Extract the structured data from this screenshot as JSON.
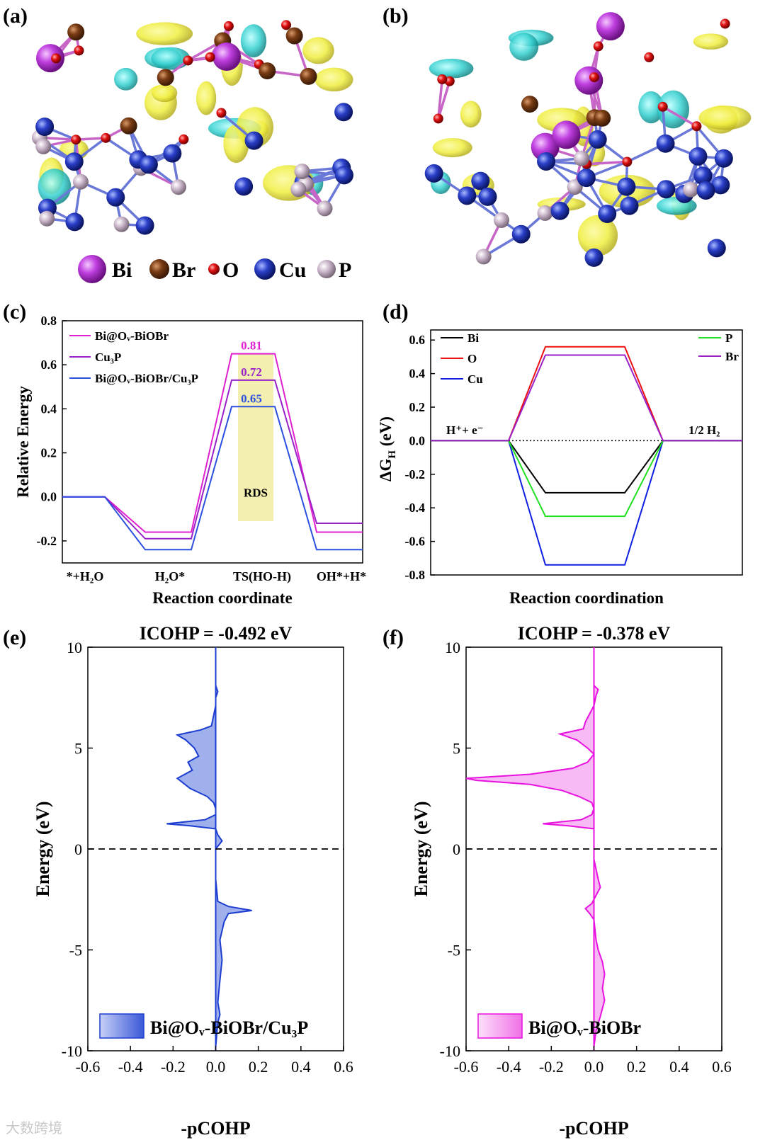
{
  "panel_labels": {
    "a": "(a)",
    "b": "(b)",
    "c": "(c)",
    "d": "(d)",
    "e": "(e)",
    "f": "(f)"
  },
  "colors": {
    "Bi": "#c040e0",
    "Br": "#7a3c14",
    "O": "#e01010",
    "Cu": "#2a3fc8",
    "P": "#c8b4c8",
    "accumulation": "#f0ee40",
    "depletion": "#35d0d0"
  },
  "atom_legend": [
    {
      "key": "Bi",
      "label": "Bi"
    },
    {
      "key": "Br",
      "label": "Br"
    },
    {
      "key": "O",
      "label": "O"
    },
    {
      "key": "Cu",
      "label": "Cu"
    },
    {
      "key": "P",
      "label": "P"
    }
  ],
  "watermark": "大数跨境",
  "chart_data": [
    {
      "id": "c",
      "type": "line",
      "ylabel": "Relative Energy",
      "xlabel": "Reaction coordinate",
      "ylim": [
        -0.3,
        0.8
      ],
      "yticks": [
        "-0.2",
        "0.0",
        "0.2",
        "0.4",
        "0.6",
        "0.8"
      ],
      "categories": [
        "*+H₂O",
        "H₂O*",
        "TS(HO-H)",
        "OH*+H*"
      ],
      "highlight": {
        "label": "RDS",
        "y_from": -0.11,
        "y_to": 0.65
      },
      "series": [
        {
          "name": "Bi@Oᵥ-BiOBr",
          "color": "#e020d0",
          "values": [
            0.0,
            -0.16,
            0.65,
            -0.16
          ],
          "barrier": "0.81"
        },
        {
          "name": "Cu₃P",
          "color": "#9a20c8",
          "values": [
            0.0,
            -0.19,
            0.53,
            -0.12
          ],
          "barrier": "0.72"
        },
        {
          "name": "Bi@Oᵥ-BiOBr/Cu₃P",
          "color": "#2b50e0",
          "values": [
            0.0,
            -0.24,
            0.41,
            -0.24
          ],
          "barrier": "0.65"
        }
      ]
    },
    {
      "id": "d",
      "type": "line",
      "ylabel": "ΔG_H (eV)",
      "ylabel_main": "ΔG",
      "ylabel_sub": "H",
      "ylabel_unit": " (eV)",
      "xlabel": "Reaction coordination",
      "ylim": [
        -0.8,
        0.66
      ],
      "yticks": [
        "-0.8",
        "-0.6",
        "-0.4",
        "-0.2",
        "0.0",
        "0.2",
        "0.4",
        "0.6"
      ],
      "annotations": {
        "left": "H⁺+ e⁻",
        "right": "1/2 H₂"
      },
      "series": [
        {
          "name": "Bi",
          "color": "#000000",
          "value": -0.31
        },
        {
          "name": "O",
          "color": "#ee1010",
          "value": 0.56
        },
        {
          "name": "Cu",
          "color": "#1020e0",
          "value": -0.74
        },
        {
          "name": "P",
          "color": "#20e020",
          "value": -0.45
        },
        {
          "name": "Br",
          "color": "#9a20c8",
          "value": 0.51
        }
      ]
    },
    {
      "id": "e",
      "type": "area",
      "title": "ICOHP = -0.492 eV",
      "xlabel": "-pCOHP",
      "ylabel": "Energy (eV)",
      "xlim": [
        -0.6,
        0.6
      ],
      "ylim": [
        -10,
        10
      ],
      "xticks": [
        "-0.6",
        "-0.4",
        "-0.2",
        "0.0",
        "0.2",
        "0.4",
        "0.6"
      ],
      "yticks": [
        "-10",
        "-5",
        "0",
        "5",
        "10"
      ],
      "legend": "Bi@Oᵥ-BiOBr/Cu₃P",
      "color": "#1c3dd0",
      "fill": "#8ea2ea",
      "curve": [
        [
          -9.8,
          0.0
        ],
        [
          -8.6,
          0.01
        ],
        [
          -8.2,
          0.02
        ],
        [
          -7.6,
          0.01
        ],
        [
          -6.5,
          0.02
        ],
        [
          -5.5,
          0.03
        ],
        [
          -4.5,
          0.02
        ],
        [
          -3.6,
          0.04
        ],
        [
          -3.2,
          0.06
        ],
        [
          -3.05,
          0.17
        ],
        [
          -2.85,
          0.06
        ],
        [
          -2.6,
          0.01
        ],
        [
          -1.5,
          0.0
        ],
        [
          0.0,
          0.0
        ],
        [
          0.4,
          0.03
        ],
        [
          0.7,
          0.01
        ],
        [
          1.0,
          0.0
        ],
        [
          1.15,
          -0.12
        ],
        [
          1.25,
          -0.23
        ],
        [
          1.45,
          -0.05
        ],
        [
          1.7,
          0.0
        ],
        [
          2.0,
          0.0
        ],
        [
          2.3,
          -0.01
        ],
        [
          2.6,
          -0.04
        ],
        [
          3.0,
          -0.12
        ],
        [
          3.5,
          -0.18
        ],
        [
          3.9,
          -0.11
        ],
        [
          4.3,
          -0.13
        ],
        [
          4.6,
          -0.08
        ],
        [
          5.0,
          -0.1
        ],
        [
          5.4,
          -0.14
        ],
        [
          5.65,
          -0.18
        ],
        [
          5.9,
          -0.07
        ],
        [
          6.1,
          -0.02
        ],
        [
          6.6,
          -0.01
        ],
        [
          7.1,
          0.0
        ],
        [
          7.5,
          0.0
        ],
        [
          7.8,
          0.01
        ],
        [
          8.1,
          0.0
        ]
      ]
    },
    {
      "id": "f",
      "type": "area",
      "title": "ICOHP = -0.378 eV",
      "xlabel": "-pCOHP",
      "ylabel": "Energy (eV)",
      "xlim": [
        -0.6,
        0.6
      ],
      "ylim": [
        -10,
        10
      ],
      "xticks": [
        "-0.6",
        "-0.4",
        "-0.2",
        "0.0",
        "0.2",
        "0.4",
        "0.6"
      ],
      "yticks": [
        "-10",
        "-5",
        "0",
        "5",
        "10"
      ],
      "legend": "Bi@Oᵥ-BiOBr",
      "color": "#e812e0",
      "fill": "#f7aef2",
      "curve": [
        [
          -9.8,
          0.0
        ],
        [
          -9.0,
          0.01
        ],
        [
          -8.3,
          0.03
        ],
        [
          -7.5,
          0.05
        ],
        [
          -6.9,
          0.04
        ],
        [
          -6.2,
          0.05
        ],
        [
          -5.6,
          0.04
        ],
        [
          -5.0,
          0.02
        ],
        [
          -4.5,
          0.01
        ],
        [
          -3.5,
          0.0
        ],
        [
          -3.2,
          -0.02
        ],
        [
          -2.95,
          -0.04
        ],
        [
          -2.7,
          -0.01
        ],
        [
          -2.3,
          0.01
        ],
        [
          -1.9,
          0.03
        ],
        [
          -1.5,
          0.02
        ],
        [
          -1.0,
          0.01
        ],
        [
          -0.5,
          0.0
        ],
        [
          0.0,
          0.0
        ],
        [
          0.5,
          0.0
        ],
        [
          1.0,
          0.0
        ],
        [
          1.15,
          -0.12
        ],
        [
          1.25,
          -0.24
        ],
        [
          1.45,
          -0.06
        ],
        [
          1.7,
          -0.01
        ],
        [
          2.0,
          0.0
        ],
        [
          2.3,
          -0.01
        ],
        [
          2.6,
          -0.07
        ],
        [
          2.9,
          -0.15
        ],
        [
          3.2,
          -0.3
        ],
        [
          3.4,
          -0.55
        ],
        [
          3.5,
          -0.6
        ],
        [
          3.7,
          -0.3
        ],
        [
          4.0,
          -0.1
        ],
        [
          4.3,
          -0.03
        ],
        [
          4.7,
          0.0
        ],
        [
          5.0,
          -0.03
        ],
        [
          5.4,
          -0.08
        ],
        [
          5.7,
          -0.16
        ],
        [
          5.95,
          -0.05
        ],
        [
          6.3,
          -0.04
        ],
        [
          6.7,
          -0.02
        ],
        [
          7.1,
          0.0
        ],
        [
          7.6,
          0.01
        ],
        [
          7.9,
          0.02
        ],
        [
          8.1,
          0.0
        ]
      ]
    }
  ]
}
